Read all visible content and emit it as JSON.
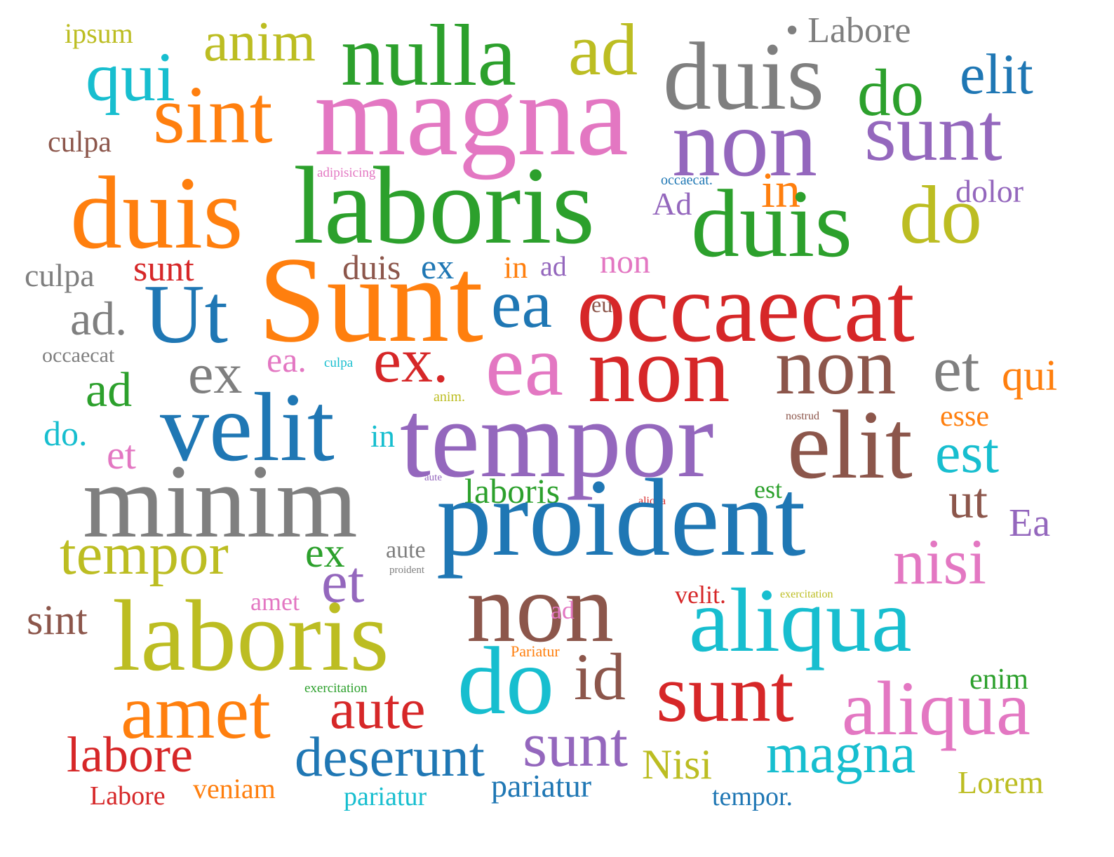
{
  "words": [
    {
      "text": "ipsum",
      "color": "#bcbd22"
    },
    {
      "text": "qui",
      "color": "#17becf"
    },
    {
      "text": "anim",
      "color": "#bcbd22"
    },
    {
      "text": "nulla",
      "color": "#2ca02c"
    },
    {
      "text": "ad",
      "color": "#bcbd22"
    },
    {
      "text": "• Labore",
      "color": "#7f7f7f"
    },
    {
      "text": "duis",
      "color": "#7f7f7f"
    },
    {
      "text": "do",
      "color": "#2ca02c"
    },
    {
      "text": "elit",
      "color": "#1f77b4"
    },
    {
      "text": "sint",
      "color": "#ff7f0e"
    },
    {
      "text": "magna",
      "color": "#e377c2"
    },
    {
      "text": "non",
      "color": "#9467bd"
    },
    {
      "text": "sunt",
      "color": "#9467bd"
    },
    {
      "text": "culpa",
      "color": "#8c564b"
    },
    {
      "text": "adipisicing",
      "color": "#e377c2"
    },
    {
      "text": "occaecat.",
      "color": "#1f77b4"
    },
    {
      "text": "duis",
      "color": "#ff7f0e"
    },
    {
      "text": "laboris",
      "color": "#2ca02c"
    },
    {
      "text": "in",
      "color": "#ff7f0e"
    },
    {
      "text": "dolor",
      "color": "#9467bd"
    },
    {
      "text": "Ad",
      "color": "#9467bd"
    },
    {
      "text": "duis",
      "color": "#2ca02c"
    },
    {
      "text": "do",
      "color": "#bcbd22"
    },
    {
      "text": "culpa",
      "color": "#7f7f7f"
    },
    {
      "text": "sunt",
      "color": "#d62728"
    },
    {
      "text": "duis",
      "color": "#8c564b"
    },
    {
      "text": "ex",
      "color": "#1f77b4"
    },
    {
      "text": "in",
      "color": "#ff7f0e"
    },
    {
      "text": "ad",
      "color": "#9467bd"
    },
    {
      "text": "non",
      "color": "#e377c2"
    },
    {
      "text": "Sunt",
      "color": "#ff7f0e"
    },
    {
      "text": "ad.",
      "color": "#7f7f7f"
    },
    {
      "text": "Ut",
      "color": "#1f77b4"
    },
    {
      "text": "ea",
      "color": "#1f77b4"
    },
    {
      "text": "eu",
      "color": "#8c564b"
    },
    {
      "text": "occaecat",
      "color": "#d62728"
    },
    {
      "text": "occaecat",
      "color": "#7f7f7f"
    },
    {
      "text": "ex",
      "color": "#7f7f7f"
    },
    {
      "text": "ea.",
      "color": "#e377c2"
    },
    {
      "text": "culpa",
      "color": "#17becf"
    },
    {
      "text": "ex.",
      "color": "#d62728"
    },
    {
      "text": "ea",
      "color": "#e377c2"
    },
    {
      "text": "non",
      "color": "#d62728"
    },
    {
      "text": "non",
      "color": "#8c564b"
    },
    {
      "text": "et",
      "color": "#7f7f7f"
    },
    {
      "text": "qui",
      "color": "#ff7f0e"
    },
    {
      "text": "ad",
      "color": "#2ca02c"
    },
    {
      "text": "anim.",
      "color": "#bcbd22"
    },
    {
      "text": "esse",
      "color": "#ff7f0e"
    },
    {
      "text": "do.",
      "color": "#17becf"
    },
    {
      "text": "velit",
      "color": "#1f77b4"
    },
    {
      "text": "in",
      "color": "#17becf"
    },
    {
      "text": "tempor",
      "color": "#9467bd"
    },
    {
      "text": "nostrud",
      "color": "#8c564b"
    },
    {
      "text": "elit",
      "color": "#8c564b"
    },
    {
      "text": "et",
      "color": "#e377c2"
    },
    {
      "text": "est",
      "color": "#17becf"
    },
    {
      "text": "minim",
      "color": "#7f7f7f"
    },
    {
      "text": "aute",
      "color": "#9467bd"
    },
    {
      "text": "laboris",
      "color": "#2ca02c"
    },
    {
      "text": "est",
      "color": "#2ca02c"
    },
    {
      "text": "aliqua",
      "color": "#d62728"
    },
    {
      "text": "ut",
      "color": "#8c564b"
    },
    {
      "text": "proident",
      "color": "#1f77b4"
    },
    {
      "text": "Ea",
      "color": "#9467bd"
    },
    {
      "text": "tempor",
      "color": "#bcbd22"
    },
    {
      "text": "ex",
      "color": "#2ca02c"
    },
    {
      "text": "aute",
      "color": "#7f7f7f"
    },
    {
      "text": "proident",
      "color": "#7f7f7f"
    },
    {
      "text": "nisi",
      "color": "#e377c2"
    },
    {
      "text": "et",
      "color": "#9467bd"
    },
    {
      "text": "amet",
      "color": "#e377c2"
    },
    {
      "text": "non",
      "color": "#8c564b"
    },
    {
      "text": "velit.",
      "color": "#d62728"
    },
    {
      "text": "exercitation",
      "color": "#bcbd22"
    },
    {
      "text": "sint",
      "color": "#8c564b"
    },
    {
      "text": "laboris",
      "color": "#bcbd22"
    },
    {
      "text": "ad",
      "color": "#e377c2"
    },
    {
      "text": "aliqua",
      "color": "#17becf"
    },
    {
      "text": "Pariatur",
      "color": "#ff7f0e"
    },
    {
      "text": "id",
      "color": "#8c564b"
    },
    {
      "text": "do",
      "color": "#17becf"
    },
    {
      "text": "exercitation",
      "color": "#2ca02c"
    },
    {
      "text": "enim",
      "color": "#2ca02c"
    },
    {
      "text": "amet",
      "color": "#ff7f0e"
    },
    {
      "text": "aute",
      "color": "#d62728"
    },
    {
      "text": "sunt",
      "color": "#d62728"
    },
    {
      "text": "aliqua",
      "color": "#e377c2"
    },
    {
      "text": "labore",
      "color": "#d62728"
    },
    {
      "text": "deserunt",
      "color": "#1f77b4"
    },
    {
      "text": "sunt",
      "color": "#9467bd"
    },
    {
      "text": "Nisi",
      "color": "#bcbd22"
    },
    {
      "text": "magna",
      "color": "#17becf"
    },
    {
      "text": "Labore",
      "color": "#d62728"
    },
    {
      "text": "veniam",
      "color": "#ff7f0e"
    },
    {
      "text": "pariatur",
      "color": "#17becf"
    },
    {
      "text": "pariatur",
      "color": "#1f77b4"
    },
    {
      "text": "tempor.",
      "color": "#1f77b4"
    },
    {
      "text": "Lorem",
      "color": "#bcbd22"
    }
  ]
}
